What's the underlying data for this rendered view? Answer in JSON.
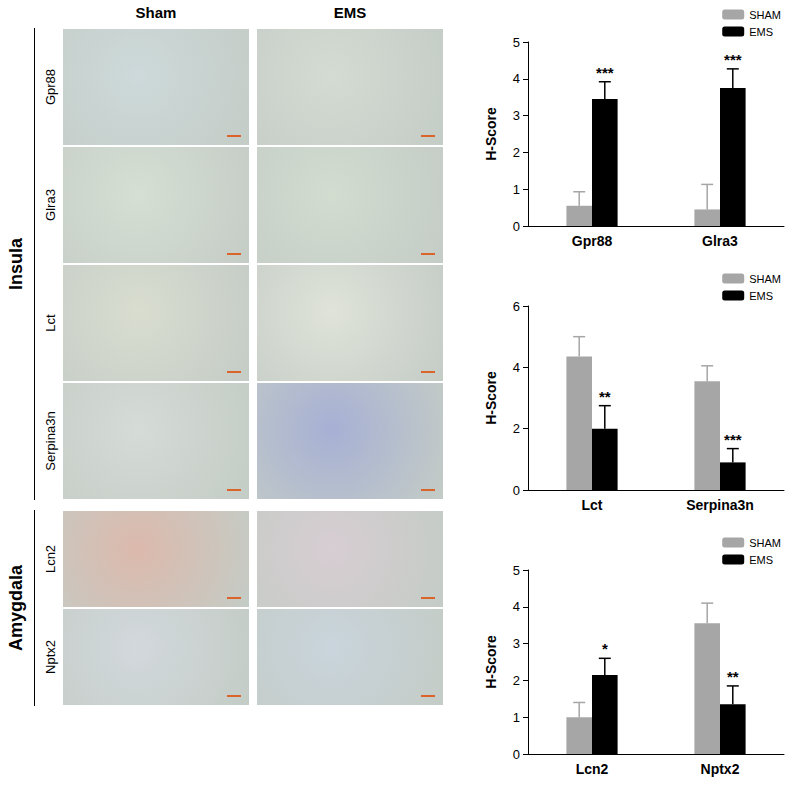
{
  "figure": {
    "columns": [
      "Sham",
      "EMS"
    ],
    "regions": [
      {
        "name": "Insula",
        "rows": [
          "Gpr88",
          "Glra3",
          "Lct",
          "Serpina3n"
        ]
      },
      {
        "name": "Amygdala",
        "rows": [
          "Lcn2",
          "Nptx2"
        ]
      }
    ]
  },
  "chart_data": [
    {
      "type": "bar",
      "categories": [
        "Gpr88",
        "Glra3"
      ],
      "y_label": "H-Score",
      "ylim": [
        0,
        5
      ],
      "yticks": [
        0,
        1,
        2,
        3,
        4,
        5
      ],
      "grid": false,
      "legend": "upper right",
      "series": [
        {
          "name": "SHAM",
          "color": "#a6a6a6",
          "values": [
            0.55,
            0.45
          ],
          "errors": [
            0.38,
            0.68
          ]
        },
        {
          "name": "EMS",
          "color": "#000000",
          "values": [
            3.45,
            3.75
          ],
          "errors": [
            0.47,
            0.52
          ],
          "significance": [
            "***",
            "***"
          ]
        }
      ]
    },
    {
      "type": "bar",
      "categories": [
        "Lct",
        "Serpina3n"
      ],
      "y_label": "H-Score",
      "ylim": [
        0,
        6
      ],
      "yticks": [
        0,
        2,
        4,
        6
      ],
      "grid": false,
      "legend": "upper right",
      "series": [
        {
          "name": "SHAM",
          "color": "#a6a6a6",
          "values": [
            4.35,
            3.55
          ],
          "errors": [
            0.65,
            0.5
          ]
        },
        {
          "name": "EMS",
          "color": "#000000",
          "values": [
            2.0,
            0.9
          ],
          "errors": [
            0.75,
            0.45
          ],
          "significance": [
            "**",
            "***"
          ]
        }
      ]
    },
    {
      "type": "bar",
      "categories": [
        "Lcn2",
        "Nptx2"
      ],
      "y_label": "H-Score",
      "ylim": [
        0,
        5
      ],
      "yticks": [
        0,
        1,
        2,
        3,
        4,
        5
      ],
      "grid": false,
      "legend": "upper right",
      "series": [
        {
          "name": "SHAM",
          "color": "#a6a6a6",
          "values": [
            1.0,
            3.55
          ],
          "errors": [
            0.4,
            0.55
          ]
        },
        {
          "name": "EMS",
          "color": "#000000",
          "values": [
            2.15,
            1.35
          ],
          "errors": [
            0.45,
            0.5
          ],
          "significance": [
            "*",
            "**"
          ]
        }
      ]
    }
  ]
}
